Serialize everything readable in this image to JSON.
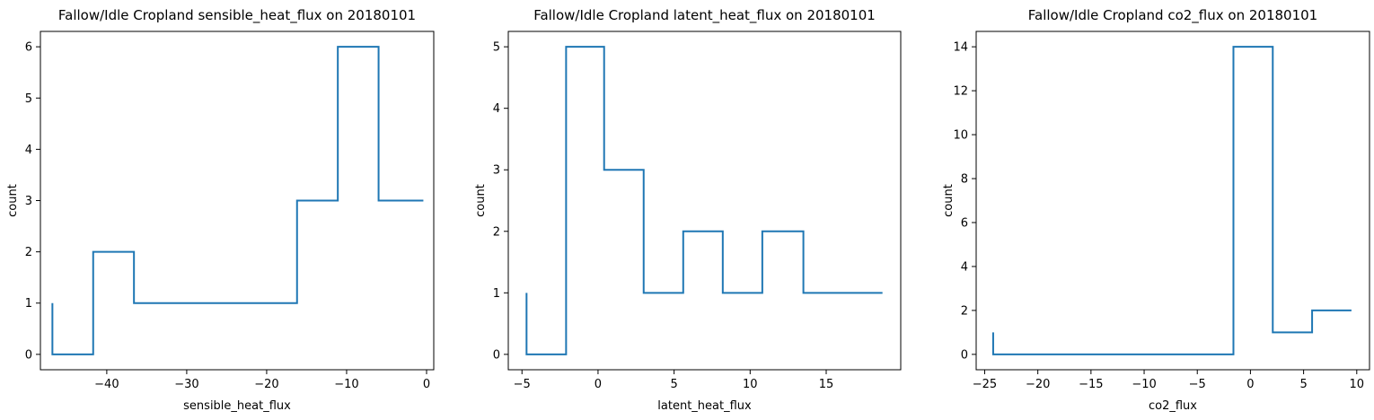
{
  "chart_data": [
    {
      "type": "line",
      "drawstyle": "steps",
      "title": "Fallow/Idle Cropland sensible_heat_flux on 20180101",
      "xlabel": "sensible_heat_flux",
      "ylabel": "count",
      "xlim": [
        -48.3,
        0.9
      ],
      "ylim": [
        -0.3,
        6.3
      ],
      "xticks": [
        -40,
        -30,
        -20,
        -10,
        0
      ],
      "xtick_labels": [
        "−40",
        "−30",
        "−20",
        "−10",
        "0"
      ],
      "yticks": [
        0,
        1,
        2,
        3,
        4,
        5,
        6
      ],
      "ytick_labels": [
        "0",
        "1",
        "2",
        "3",
        "4",
        "5",
        "6"
      ],
      "color": "#1f77b4",
      "x": [
        -46.8,
        -41.7,
        -36.6,
        -31.5,
        -26.4,
        -21.3,
        -16.2,
        -11.1,
        -6.0,
        -0.4
      ],
      "y": [
        1,
        0,
        2,
        1,
        1,
        1,
        1,
        3,
        6,
        3
      ]
    },
    {
      "type": "line",
      "drawstyle": "steps",
      "title": "Fallow/Idle Cropland latent_heat_flux on 20180101",
      "xlabel": "latent_heat_flux",
      "ylabel": "count",
      "xlim": [
        -5.9,
        19.9
      ],
      "ylim": [
        -0.25,
        5.25
      ],
      "xticks": [
        -5,
        0,
        5,
        10,
        15
      ],
      "xtick_labels": [
        "−5",
        "0",
        "5",
        "10",
        "15"
      ],
      "yticks": [
        0,
        1,
        2,
        3,
        4,
        5
      ],
      "ytick_labels": [
        "0",
        "1",
        "2",
        "3",
        "4",
        "5"
      ],
      "color": "#1f77b4",
      "x": [
        -4.7,
        -2.1,
        0.4,
        3.0,
        5.6,
        8.2,
        10.8,
        13.5,
        16.1,
        18.7
      ],
      "y": [
        1,
        0,
        5,
        3,
        1,
        2,
        1,
        2,
        1,
        1
      ]
    },
    {
      "type": "line",
      "drawstyle": "steps",
      "title": "Fallow/Idle Cropland co2_flux on 20180101",
      "xlabel": "co2_flux",
      "ylabel": "count",
      "xlim": [
        -25.8,
        11.2
      ],
      "ylim": [
        -0.7,
        14.7
      ],
      "xticks": [
        -25,
        -20,
        -15,
        -10,
        -5,
        0,
        5,
        10
      ],
      "xtick_labels": [
        "−25",
        "−20",
        "−15",
        "−10",
        "−5",
        "0",
        "5",
        "10"
      ],
      "yticks": [
        0,
        2,
        4,
        6,
        8,
        10,
        12,
        14
      ],
      "ytick_labels": [
        "0",
        "2",
        "4",
        "6",
        "8",
        "10",
        "12",
        "14"
      ],
      "color": "#1f77b4",
      "x": [
        -24.2,
        -1.6,
        2.1,
        5.8,
        9.5
      ],
      "y": [
        1,
        0,
        14,
        1,
        2
      ]
    }
  ]
}
